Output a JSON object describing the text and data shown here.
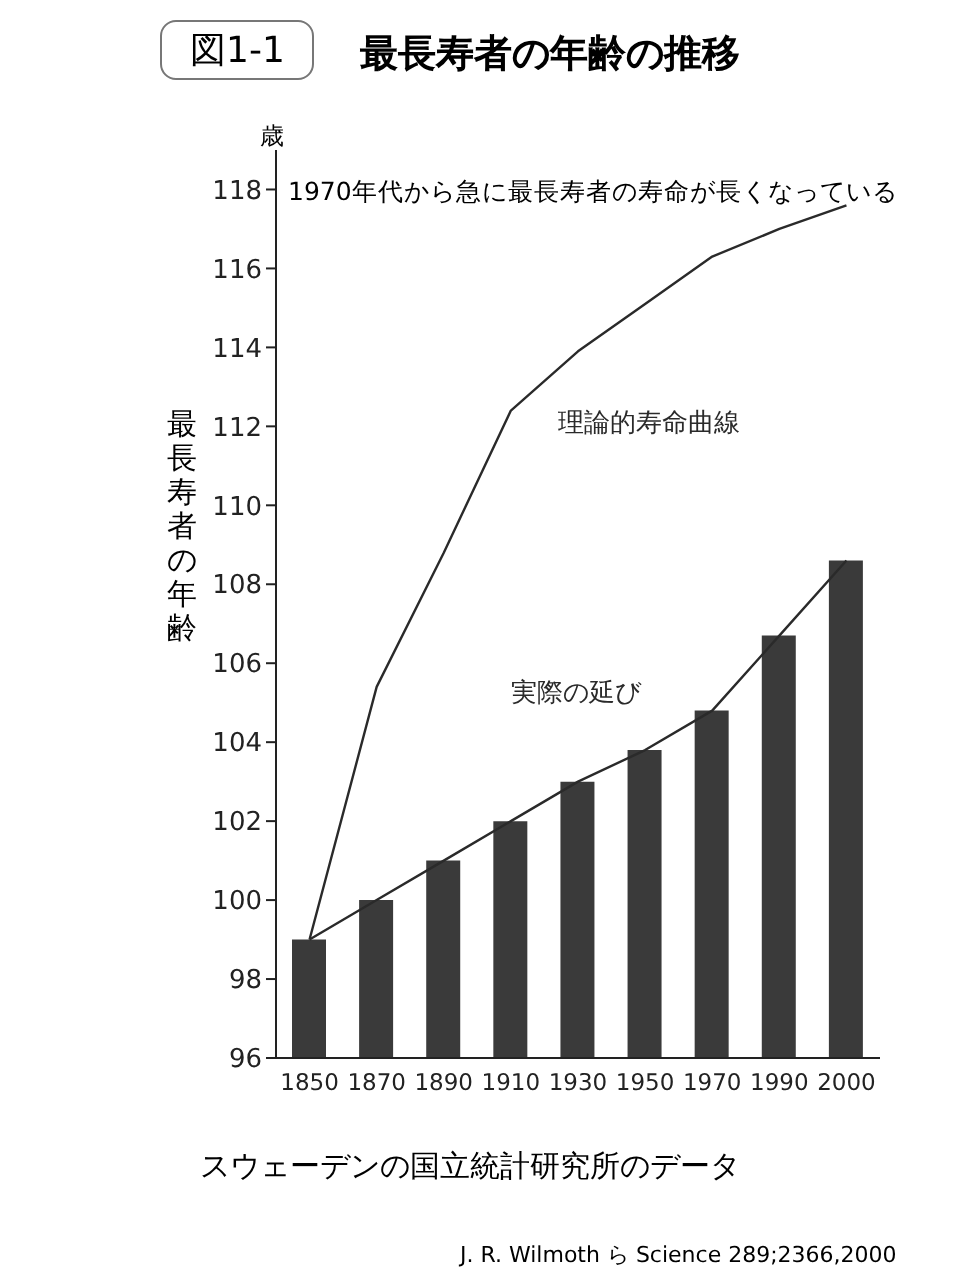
{
  "chart_data": {
    "type": "bar",
    "title": "最長寿者の年齢の推移",
    "ylabel": "最長寿者の年齢",
    "annotations": [
      "図1-1",
      "歳",
      "1970年代から急に最長寿者の寿命が長くなっている",
      "スウェーデンの国立統計研究所のデータ",
      "J. R. Wilmoth ら Science 289;2366,2000"
    ],
    "categories": [
      "1850",
      "1870",
      "1890",
      "1910",
      "1930",
      "1950",
      "1970",
      "1990",
      "2000"
    ],
    "series": [
      {
        "color": "#3a3a3a",
        "values": [
          99,
          100,
          101,
          102,
          103,
          103.8,
          104.8,
          106.7,
          108.6
        ]
      },
      {
        "type": "line",
        "name": "実際の延び",
        "color": "#2a2a2a",
        "values": [
          99,
          100,
          101,
          102,
          103,
          103.8,
          104.8,
          106.7,
          108.6
        ]
      },
      {
        "type": "line",
        "name": "理論的寿命曲線",
        "color": "#2a2a2a",
        "values": [
          99,
          105.4,
          108.8,
          112.4,
          113.9,
          115.1,
          116.3,
          117,
          117.6
        ]
      }
    ],
    "ylim": [
      96,
      119
    ],
    "yticks": [
      96,
      98,
      100,
      102,
      104,
      106,
      108,
      110,
      112,
      114,
      116,
      118
    ],
    "grid": false,
    "legend": false,
    "marker": "none",
    "line_style": "solid"
  }
}
